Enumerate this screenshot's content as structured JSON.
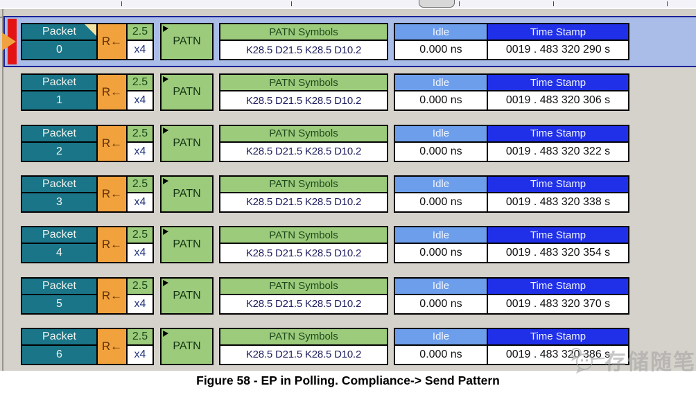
{
  "caption": "Figure 58 - EP in Polling. Compliance-> Send Pattern",
  "watermark": {
    "text": "存储随笔"
  },
  "rows": [
    {
      "packet_label": "Packet",
      "packet_number": "0",
      "direction": "R←",
      "speed": "2.5",
      "lanes": "x4",
      "pattern": "PATN",
      "symbols_header": "PATN Symbols",
      "symbols": "K28.5 D21.5 K28.5 D10.2",
      "idle_header": "Idle",
      "idle_value": "0.000 ns",
      "timestamp_header": "Time Stamp",
      "timestamp_value": "0019 . 483 320 290 s",
      "selected": true
    },
    {
      "packet_label": "Packet",
      "packet_number": "1",
      "direction": "R←",
      "speed": "2.5",
      "lanes": "x4",
      "pattern": "PATN",
      "symbols_header": "PATN Symbols",
      "symbols": "K28.5 D21.5 K28.5 D10.2",
      "idle_header": "Idle",
      "idle_value": "0.000 ns",
      "timestamp_header": "Time Stamp",
      "timestamp_value": "0019 . 483 320 306 s",
      "selected": false
    },
    {
      "packet_label": "Packet",
      "packet_number": "2",
      "direction": "R←",
      "speed": "2.5",
      "lanes": "x4",
      "pattern": "PATN",
      "symbols_header": "PATN Symbols",
      "symbols": "K28.5 D21.5 K28.5 D10.2",
      "idle_header": "Idle",
      "idle_value": "0.000 ns",
      "timestamp_header": "Time Stamp",
      "timestamp_value": "0019 . 483 320 322 s",
      "selected": false
    },
    {
      "packet_label": "Packet",
      "packet_number": "3",
      "direction": "R←",
      "speed": "2.5",
      "lanes": "x4",
      "pattern": "PATN",
      "symbols_header": "PATN Symbols",
      "symbols": "K28.5 D21.5 K28.5 D10.2",
      "idle_header": "Idle",
      "idle_value": "0.000 ns",
      "timestamp_header": "Time Stamp",
      "timestamp_value": "0019 . 483 320 338 s",
      "selected": false
    },
    {
      "packet_label": "Packet",
      "packet_number": "4",
      "direction": "R←",
      "speed": "2.5",
      "lanes": "x4",
      "pattern": "PATN",
      "symbols_header": "PATN Symbols",
      "symbols": "K28.5 D21.5 K28.5 D10.2",
      "idle_header": "Idle",
      "idle_value": "0.000 ns",
      "timestamp_header": "Time Stamp",
      "timestamp_value": "0019 . 483 320 354 s",
      "selected": false
    },
    {
      "packet_label": "Packet",
      "packet_number": "5",
      "direction": "R←",
      "speed": "2.5",
      "lanes": "x4",
      "pattern": "PATN",
      "symbols_header": "PATN Symbols",
      "symbols": "K28.5 D21.5 K28.5 D10.2",
      "idle_header": "Idle",
      "idle_value": "0.000 ns",
      "timestamp_header": "Time Stamp",
      "timestamp_value": "0019 . 483 320 370 s",
      "selected": false
    },
    {
      "packet_label": "Packet",
      "packet_number": "6",
      "direction": "R←",
      "speed": "2.5",
      "lanes": "x4",
      "pattern": "PATN",
      "symbols_header": "PATN Symbols",
      "symbols": "K28.5 D21.5 K28.5 D10.2",
      "idle_header": "Idle",
      "idle_value": "0.000 ns",
      "timestamp_header": "Time Stamp",
      "timestamp_value": "0019 . 483 320 386 s",
      "selected": false
    }
  ],
  "colors": {
    "packet_bg": "#1A7588",
    "direction_bg": "#F2A23D",
    "pattern_bg": "#9CCB7C",
    "idle_header_bg": "#6D9EEC",
    "timestamp_header_bg": "#2030E8",
    "selection_fill": "#A9BDE8",
    "selection_border": "#1C2298",
    "selection_stripe": "#E41414",
    "pane_bg": "#D5D2CB"
  }
}
